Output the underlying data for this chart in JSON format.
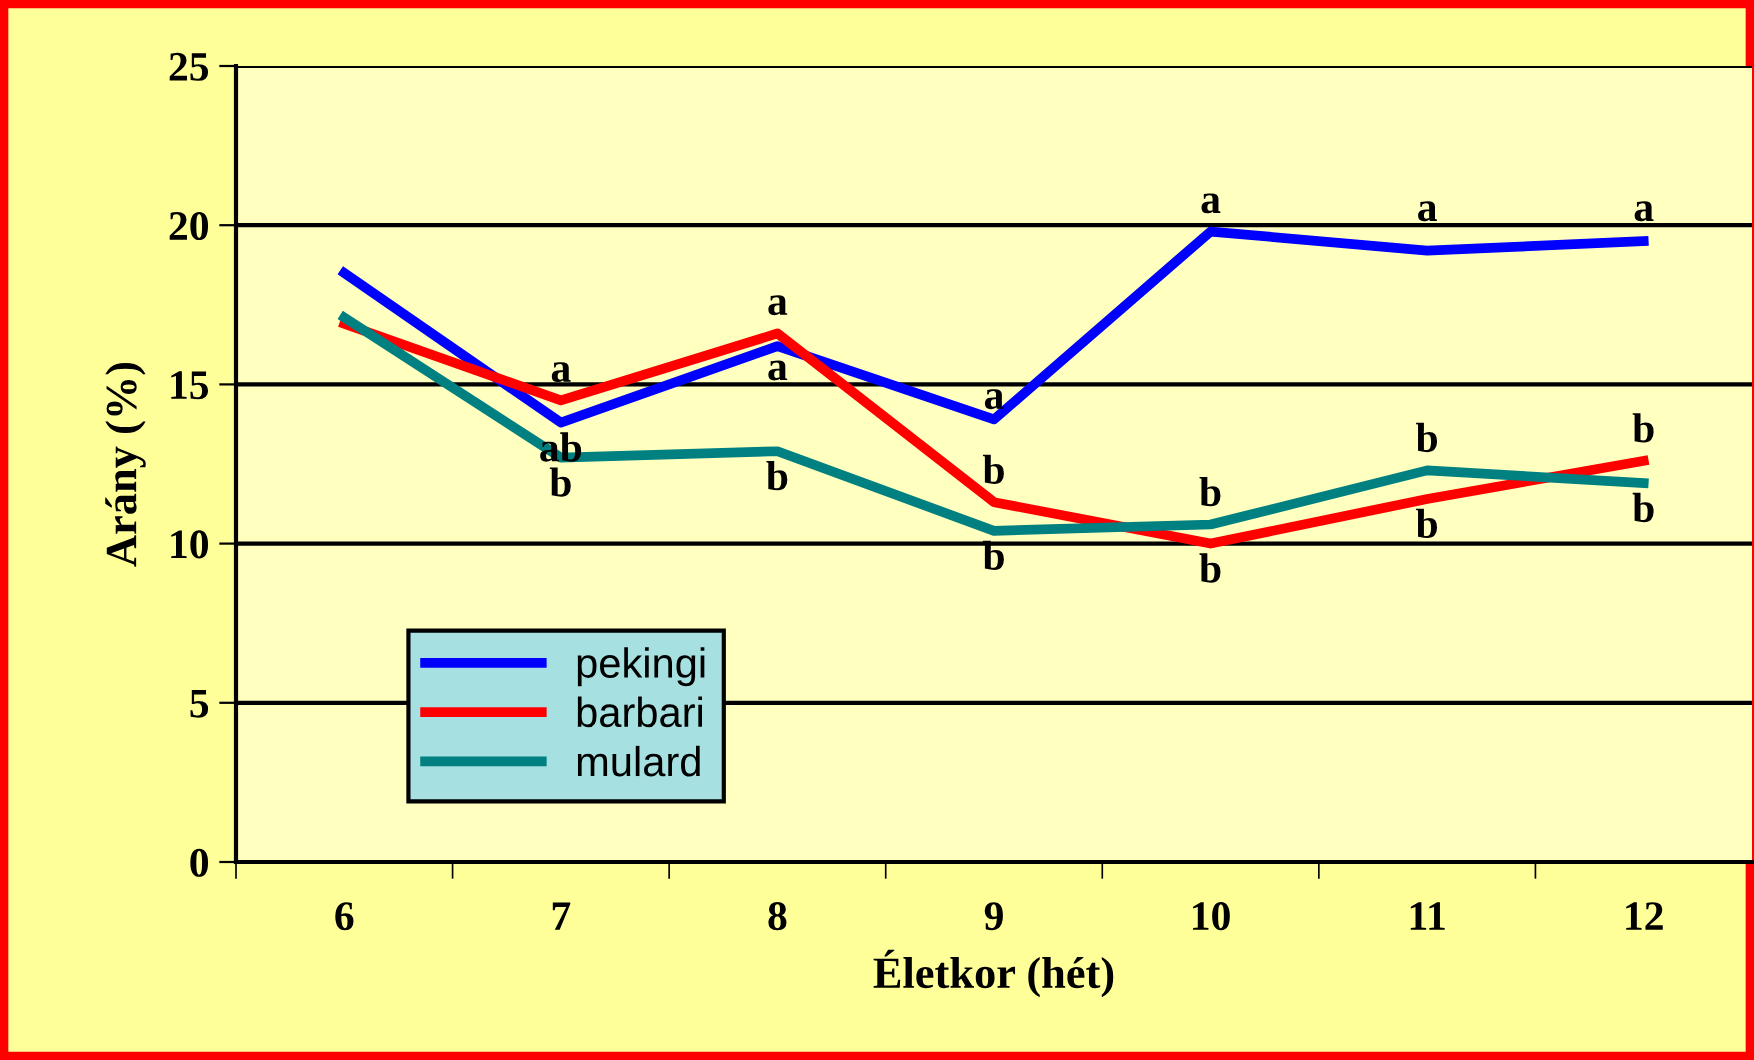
{
  "chart_data": {
    "type": "line",
    "xlabel": "Életkor (hét)",
    "ylabel": "Arány (%)",
    "categories": [
      "6",
      "7",
      "8",
      "9",
      "10",
      "11",
      "12"
    ],
    "series": [
      {
        "name": "pekingi",
        "color": "#0000ff",
        "values": [
          18.5,
          13.8,
          16.2,
          13.9,
          19.8,
          19.2,
          19.5
        ],
        "value_labels": [
          null,
          "ab",
          "a",
          "a",
          "a",
          "a",
          "a"
        ]
      },
      {
        "name": "barbari",
        "color": "#ff0000",
        "values": [
          16.9,
          14.5,
          16.6,
          11.3,
          10.0,
          11.4,
          12.6
        ],
        "value_labels": [
          null,
          "a",
          "a",
          "b",
          "b",
          "b",
          "b"
        ]
      },
      {
        "name": "mulard",
        "color": "#008080",
        "values": [
          17.1,
          12.7,
          12.9,
          10.4,
          10.6,
          12.3,
          11.9
        ],
        "value_labels": [
          null,
          "b",
          "b",
          "b",
          "b",
          "b",
          "b"
        ]
      }
    ],
    "ylim": [
      0,
      25
    ],
    "yticks": [
      0,
      5,
      10,
      15,
      20,
      25
    ],
    "grid": "y",
    "legend": "bottom left",
    "marker": "none",
    "line_style": "solid"
  }
}
